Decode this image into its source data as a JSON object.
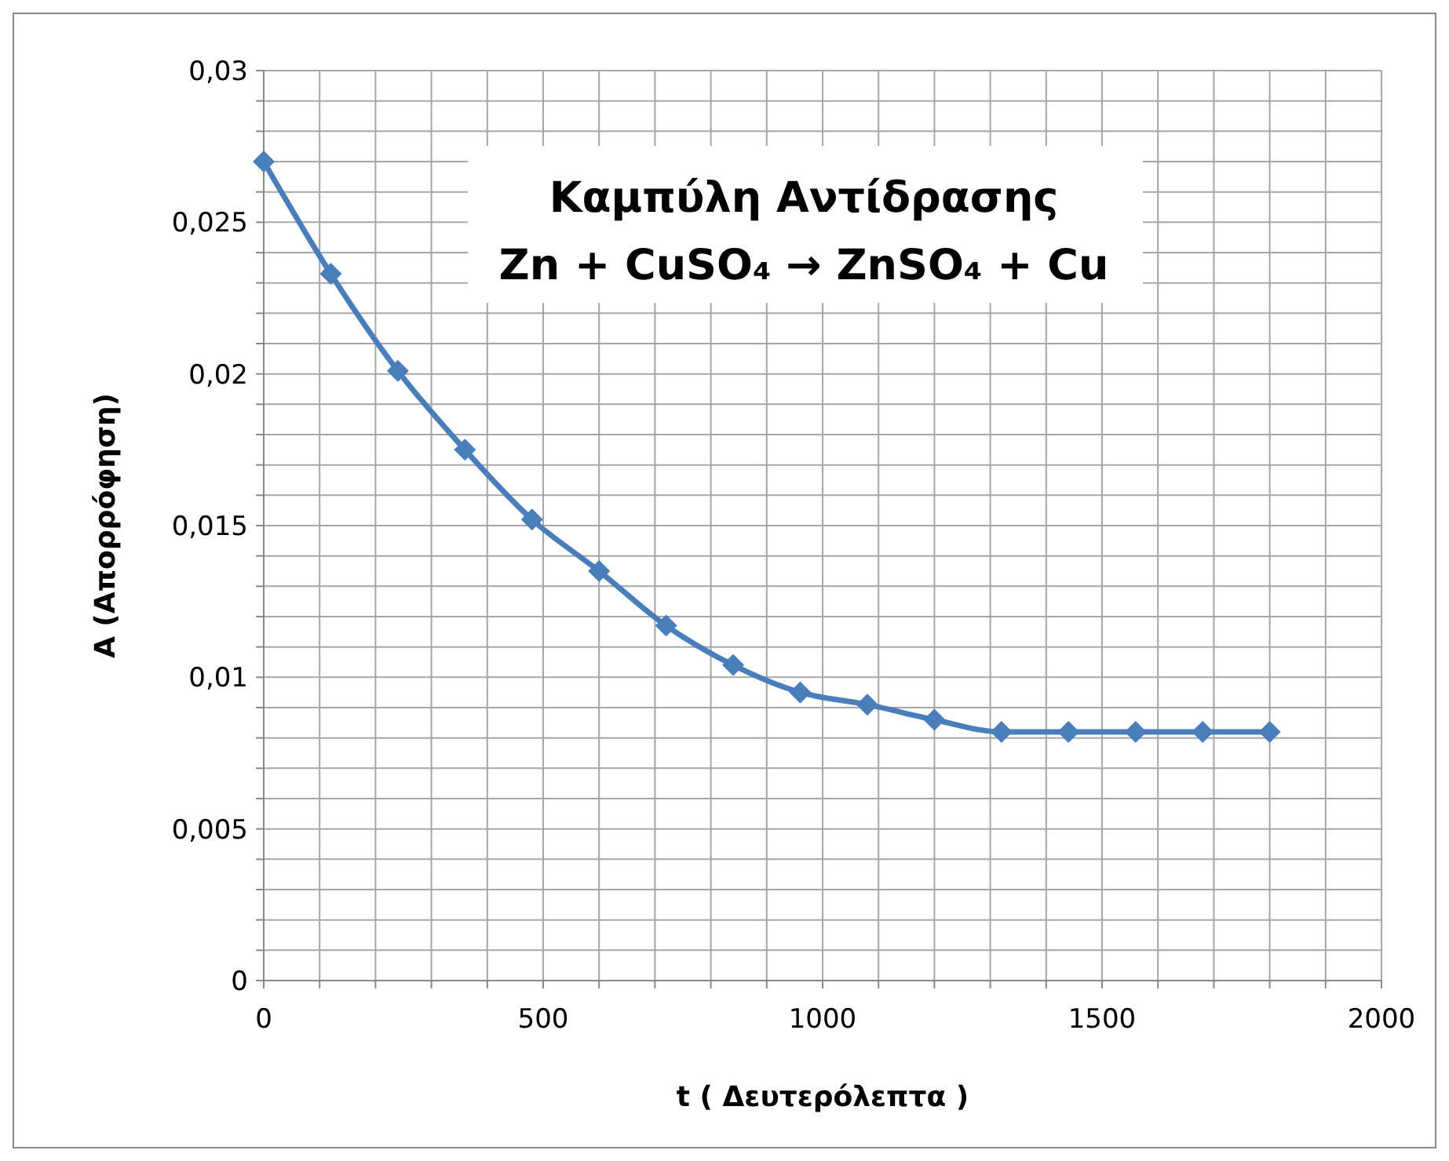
{
  "chart_data": {
    "type": "line",
    "title": "Καμπύλη Αντίδρασης",
    "subtitle": "Zn + CuSO₄ → ZnSO₄ + Cu",
    "xlabel": "t ( Δευτερόλεπτα )",
    "ylabel": "A (Απορρόφηση)",
    "x": [
      0,
      120,
      240,
      360,
      480,
      600,
      720,
      840,
      960,
      1080,
      1200,
      1320,
      1440,
      1560,
      1680,
      1800
    ],
    "series": [
      {
        "color": "#4a7ebb",
        "values": [
          0.027,
          0.0233,
          0.0201,
          0.0175,
          0.0152,
          0.0135,
          0.0117,
          0.0104,
          0.0095,
          0.0091,
          0.0086,
          0.0082,
          0.0082,
          0.0082,
          0.0082,
          0.0082
        ]
      }
    ],
    "xlim": [
      0,
      2000
    ],
    "xticks": [
      0,
      {
        "value": 100,
        "label": null
      },
      {
        "value": 200,
        "label": null
      },
      {
        "value": 300,
        "label": null
      },
      {
        "value": 400,
        "label": null
      },
      500,
      {
        "value": 600,
        "label": null
      },
      {
        "value": 700,
        "label": null
      },
      {
        "value": 800,
        "label": null
      },
      {
        "value": 900,
        "label": null
      },
      1000,
      {
        "value": 1100,
        "label": null
      },
      {
        "value": 1200,
        "label": null
      },
      {
        "value": 1300,
        "label": null
      },
      {
        "value": 1400,
        "label": null
      },
      1500,
      {
        "value": 1600,
        "label": null
      },
      {
        "value": 1700,
        "label": null
      },
      {
        "value": 1800,
        "label": null
      },
      {
        "value": 1900,
        "label": null
      },
      2000
    ],
    "ylim": [
      0,
      0.03
    ],
    "yticks": [
      {
        "value": 0,
        "label": "0"
      },
      {
        "value": 0.001,
        "label": null
      },
      {
        "value": 0.002,
        "label": null
      },
      {
        "value": 0.003,
        "label": null
      },
      {
        "value": 0.004,
        "label": null
      },
      {
        "value": 0.005,
        "label": "0,005"
      },
      {
        "value": 0.006,
        "label": null
      },
      {
        "value": 0.007,
        "label": null
      },
      {
        "value": 0.008,
        "label": null
      },
      {
        "value": 0.009,
        "label": null
      },
      {
        "value": 0.01,
        "label": "0,01"
      },
      {
        "value": 0.011,
        "label": null
      },
      {
        "value": 0.012,
        "label": null
      },
      {
        "value": 0.013,
        "label": null
      },
      {
        "value": 0.014,
        "label": null
      },
      {
        "value": 0.015,
        "label": "0,015"
      },
      {
        "value": 0.016,
        "label": null
      },
      {
        "value": 0.017,
        "label": null
      },
      {
        "value": 0.018,
        "label": null
      },
      {
        "value": 0.019,
        "label": null
      },
      {
        "value": 0.02,
        "label": "0,02"
      },
      {
        "value": 0.021,
        "label": null
      },
      {
        "value": 0.022,
        "label": null
      },
      {
        "value": 0.023,
        "label": null
      },
      {
        "value": 0.024,
        "label": null
      },
      {
        "value": 0.025,
        "label": "0,025"
      },
      {
        "value": 0.026,
        "label": null
      },
      {
        "value": 0.027,
        "label": null
      },
      {
        "value": 0.028,
        "label": null
      },
      {
        "value": 0.029,
        "label": null
      },
      {
        "value": 0.03,
        "label": "0,03"
      }
    ],
    "grid": true,
    "marker": "diamond",
    "line_style": "solid"
  }
}
